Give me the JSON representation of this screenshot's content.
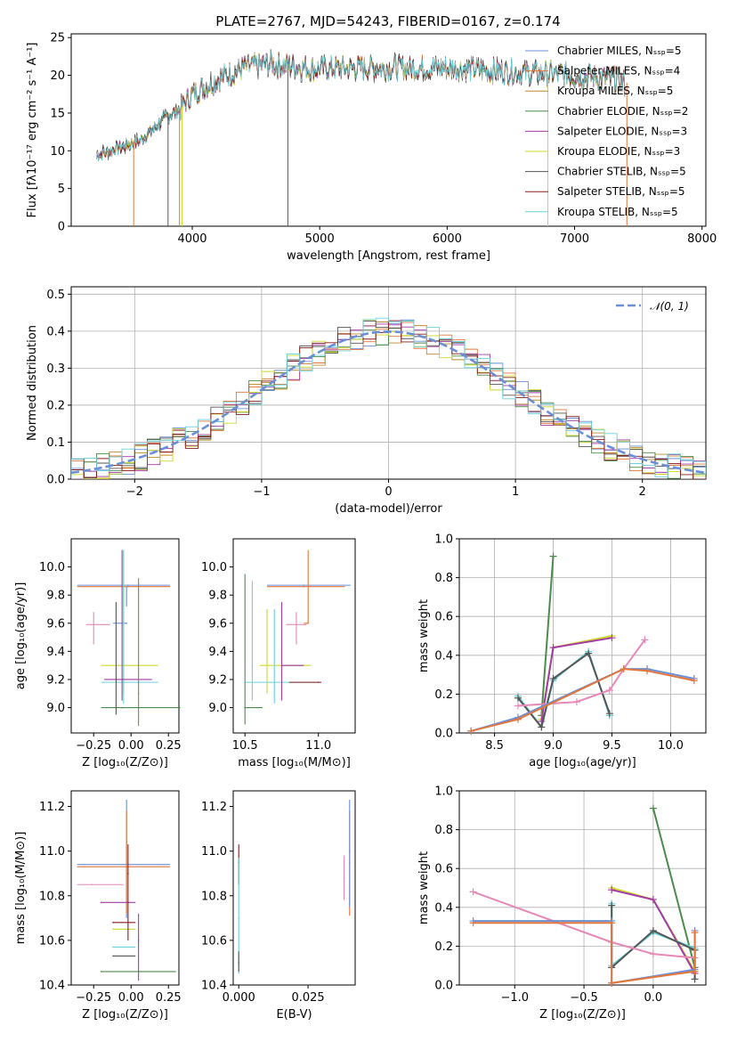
{
  "colors": {
    "CM": "#6a8fd8",
    "SM": "#e4763a",
    "KM": "#c08a2b",
    "CE": "#4d8b4d",
    "SE": "#a33aa8",
    "KE": "#cfd92a",
    "CS": "#555555",
    "SS": "#8a1c1c",
    "KS": "#6ad2dc",
    "pink": "#e688b8",
    "olive": "#7a8a55",
    "normal": "#6a8fd8"
  },
  "chart_data": [
    {
      "type": "line",
      "title": "PLATE=2767, MJD=54243, FIBERID=0167, z=0.174",
      "xlabel": "wavelength [Angstrom, rest frame]",
      "ylabel": "Flux [fλ10⁻¹⁷ erg cm⁻² s⁻¹ A⁻¹]",
      "xlim": [
        3050,
        8030
      ],
      "ylim": [
        0,
        25.5
      ],
      "xticks": [
        "4000",
        "5000",
        "6000",
        "7000",
        "8000"
      ],
      "yticks": [
        "0",
        "5",
        "10",
        "15",
        "20",
        "25"
      ],
      "legend_position": "upper-right",
      "series": [
        {
          "name": "Chabrier MILES, Nₛₛₚ=5",
          "color_key": "CM"
        },
        {
          "name": "Salpeter MILES, Nₛₛₚ=4",
          "color_key": "SM"
        },
        {
          "name": "Kroupa MILES, Nₛₛₚ=5",
          "color_key": "KM"
        },
        {
          "name": "Chabrier ELODIE, Nₛₛₚ=2",
          "color_key": "CE"
        },
        {
          "name": "Salpeter ELODIE, Nₛₛₚ=3",
          "color_key": "SE"
        },
        {
          "name": "Kroupa ELODIE, Nₛₛₚ=3",
          "color_key": "KE"
        },
        {
          "name": "Chabrier STELIB, Nₛₛₚ=5",
          "color_key": "CS"
        },
        {
          "name": "Salpeter STELIB, Nₛₛₚ=5",
          "color_key": "SS"
        },
        {
          "name": "Kroupa STELIB, Nₛₛₚ=5",
          "color_key": "KS"
        }
      ],
      "continuum": {
        "x": [
          3250,
          3400,
          3600,
          3800,
          3900,
          4000,
          4100,
          4200,
          4400,
          4600,
          4800,
          5000,
          5200,
          5500,
          6000,
          6500,
          7000,
          7300,
          7400
        ],
        "y": [
          9.5,
          10.2,
          11.5,
          14.5,
          15.5,
          17.5,
          18.5,
          19.5,
          21,
          21.5,
          21.2,
          20.8,
          21,
          21,
          21,
          20.5,
          20,
          19.5,
          19
        ]
      }
    },
    {
      "type": "histogram",
      "xlabel": "(data-model)/error",
      "ylabel": "Normed distribution",
      "xlim": [
        -2.5,
        2.5
      ],
      "ylim": [
        0,
        0.52
      ],
      "xticks": [
        "−2",
        "−1",
        "0",
        "1",
        "2"
      ],
      "yticks": [
        "0.0",
        "0.1",
        "0.2",
        "0.3",
        "0.4",
        "0.5"
      ],
      "legend_position": "upper-right",
      "legend": "𝒩(0, 1)",
      "bin_width": 0.1,
      "grid": true
    },
    {
      "type": "errorbar",
      "xlabel": "Z [log₁₀(Z/Z⊙)]",
      "ylabel": "age  [log₁₀(age/yr)]",
      "xlim": [
        -0.4,
        0.32
      ],
      "ylim": [
        8.82,
        10.2
      ],
      "xticks": [
        "−0.25",
        "0.00",
        "0.25"
      ],
      "yticks": [
        "9.0",
        "9.2",
        "9.4",
        "9.6",
        "9.8",
        "10.0"
      ],
      "points": [
        {
          "x": -0.02,
          "y": 9.87,
          "xlo": -0.36,
          "xhi": 0.26,
          "ylo": 9.87,
          "yhi": 9.87,
          "c": "CM"
        },
        {
          "x": -0.02,
          "y": 9.86,
          "xlo": -0.36,
          "xhi": 0.26,
          "ylo": 9.86,
          "yhi": 9.86,
          "c": "SM"
        },
        {
          "x": -0.03,
          "y": 9.6,
          "xlo": -0.12,
          "xhi": -0.03,
          "ylo": 9.72,
          "yhi": 9.86,
          "c": "CM"
        },
        {
          "x": -0.25,
          "y": 9.59,
          "xlo": -0.3,
          "xhi": -0.14,
          "ylo": 9.45,
          "yhi": 9.68,
          "c": "pink"
        },
        {
          "x": -0.05,
          "y": 9.3,
          "xlo": -0.2,
          "xhi": 0.18,
          "ylo": 9.1,
          "yhi": 10.12,
          "c": "KE"
        },
        {
          "x": -0.05,
          "y": 9.18,
          "xlo": -0.2,
          "xhi": 0.18,
          "ylo": 9.03,
          "yhi": 10.12,
          "c": "KS"
        },
        {
          "x": -0.06,
          "y": 9.2,
          "xlo": -0.18,
          "xhi": 0.14,
          "ylo": 9.05,
          "yhi": 10.12,
          "c": "SE"
        },
        {
          "x": 0.05,
          "y": 9.1,
          "xlo": 0.05,
          "xhi": 0.05,
          "ylo": 8.87,
          "yhi": 9.92,
          "c": "olive"
        },
        {
          "x": -0.06,
          "y": 9.0,
          "xlo": -0.2,
          "xhi": 0.33,
          "ylo": 9.0,
          "yhi": 9.0,
          "c": "CE"
        },
        {
          "x": -0.1,
          "y": 9.2,
          "xlo": -0.1,
          "xhi": -0.1,
          "ylo": 8.95,
          "yhi": 9.75,
          "c": "CS"
        }
      ]
    },
    {
      "type": "errorbar",
      "xlabel": "mass [log₁₀(M/M⊙)]",
      "xlim": [
        10.42,
        11.25
      ],
      "ylim": [
        8.82,
        10.2
      ],
      "xticks": [
        "10.5",
        "11.0"
      ],
      "yticks": [
        "9.0",
        "9.2",
        "9.4",
        "9.6",
        "9.8",
        "10.0"
      ],
      "points": [
        {
          "x": 10.9,
          "y": 9.87,
          "xlo": 10.65,
          "xhi": 11.22,
          "ylo": 9.87,
          "yhi": 9.87,
          "c": "CM"
        },
        {
          "x": 10.9,
          "y": 9.86,
          "xlo": 10.65,
          "xhi": 11.18,
          "ylo": 9.86,
          "yhi": 9.86,
          "c": "SM"
        },
        {
          "x": 10.93,
          "y": 9.6,
          "xlo": 10.9,
          "xhi": 10.93,
          "ylo": 9.6,
          "yhi": 10.12,
          "c": "SM"
        },
        {
          "x": 10.85,
          "y": 9.59,
          "xlo": 10.78,
          "xhi": 10.92,
          "ylo": 9.45,
          "yhi": 9.68,
          "c": "pink"
        },
        {
          "x": 10.65,
          "y": 9.3,
          "xlo": 10.6,
          "xhi": 10.95,
          "ylo": 9.1,
          "yhi": 9.7,
          "c": "KE"
        },
        {
          "x": 10.7,
          "y": 9.18,
          "xlo": 10.5,
          "xhi": 11.0,
          "ylo": 9.03,
          "yhi": 9.7,
          "c": "KS"
        },
        {
          "x": 10.75,
          "y": 9.3,
          "xlo": 10.75,
          "xhi": 10.9,
          "ylo": 9.05,
          "yhi": 9.75,
          "c": "SE"
        },
        {
          "x": 10.5,
          "y": 9.0,
          "xlo": 10.5,
          "xhi": 10.62,
          "ylo": 8.88,
          "yhi": 9.95,
          "c": "CE"
        },
        {
          "x": 11.0,
          "y": 9.18,
          "xlo": 10.8,
          "xhi": 11.02,
          "ylo": 9.18,
          "yhi": 9.18,
          "c": "SS"
        },
        {
          "x": 10.55,
          "y": 9.3,
          "xlo": 10.55,
          "xhi": 10.55,
          "ylo": 9.05,
          "yhi": 9.9,
          "c": "KS"
        }
      ]
    },
    {
      "type": "line",
      "xlabel": "age  [log₁₀(age/yr)]",
      "ylabel": "mass weight",
      "xlim": [
        8.2,
        10.3
      ],
      "ylim": [
        0,
        1.0
      ],
      "xticks": [
        "8.5",
        "9.0",
        "9.5",
        "10.0"
      ],
      "yticks": [
        "0.0",
        "0.2",
        "0.4",
        "0.6",
        "0.8",
        "1.0"
      ],
      "grid": true,
      "series": [
        {
          "c": "CE",
          "x": [
            8.9,
            9.0
          ],
          "y": [
            0.09,
            0.91
          ]
        },
        {
          "c": "KE",
          "x": [
            8.9,
            9.0,
            9.5
          ],
          "y": [
            0.07,
            0.44,
            0.5
          ]
        },
        {
          "c": "SE",
          "x": [
            8.9,
            9.0,
            9.5
          ],
          "y": [
            0.06,
            0.44,
            0.49
          ]
        },
        {
          "c": "KS",
          "x": [
            8.7,
            8.9,
            9.0,
            9.3,
            9.48
          ],
          "y": [
            0.19,
            0.03,
            0.27,
            0.42,
            0.09
          ]
        },
        {
          "c": "CS",
          "x": [
            8.7,
            8.9,
            9.0,
            9.3,
            9.48
          ],
          "y": [
            0.18,
            0.03,
            0.28,
            0.41,
            0.1
          ]
        },
        {
          "c": "pink",
          "x": [
            8.7,
            9.2,
            9.48,
            9.6,
            9.78
          ],
          "y": [
            0.14,
            0.16,
            0.22,
            0.33,
            0.48
          ]
        },
        {
          "c": "CM",
          "x": [
            8.3,
            8.7,
            9.6,
            9.8,
            10.2
          ],
          "y": [
            0.01,
            0.08,
            0.33,
            0.33,
            0.28
          ]
        },
        {
          "c": "SM",
          "x": [
            8.3,
            8.7,
            9.6,
            9.8,
            10.2
          ],
          "y": [
            0.01,
            0.07,
            0.33,
            0.32,
            0.27
          ]
        }
      ]
    },
    {
      "type": "errorbar",
      "xlabel": "Z [log₁₀(Z/Z⊙)]",
      "ylabel": "mass [log₁₀(M/M⊙)]",
      "xlim": [
        -0.4,
        0.32
      ],
      "ylim": [
        10.4,
        11.27
      ],
      "xticks": [
        "−0.25",
        "0.00",
        "0.25"
      ],
      "yticks": [
        "10.4",
        "10.6",
        "10.8",
        "11.0",
        "11.2"
      ],
      "points": [
        {
          "x": -0.03,
          "y": 10.94,
          "xlo": -0.36,
          "xhi": 0.26,
          "ylo": 10.7,
          "yhi": 11.23,
          "c": "CM"
        },
        {
          "x": -0.03,
          "y": 10.93,
          "xlo": -0.36,
          "xhi": 0.26,
          "ylo": 10.72,
          "yhi": 11.18,
          "c": "SM"
        },
        {
          "x": -0.26,
          "y": 10.85,
          "xlo": -0.36,
          "xhi": -0.05,
          "ylo": 10.85,
          "yhi": 10.85,
          "c": "pink"
        },
        {
          "x": -0.2,
          "y": 10.77,
          "xlo": -0.2,
          "xhi": 0.03,
          "ylo": 10.77,
          "yhi": 10.77,
          "c": "SE"
        },
        {
          "x": -0.12,
          "y": 10.68,
          "xlo": -0.12,
          "xhi": 0.03,
          "ylo": 10.68,
          "yhi": 10.68,
          "c": "SS"
        },
        {
          "x": -0.12,
          "y": 10.65,
          "xlo": -0.12,
          "xhi": 0.03,
          "ylo": 10.65,
          "yhi": 10.65,
          "c": "KE"
        },
        {
          "x": -0.12,
          "y": 10.57,
          "xlo": -0.12,
          "xhi": 0.03,
          "ylo": 10.57,
          "yhi": 10.57,
          "c": "KS"
        },
        {
          "x": -0.12,
          "y": 10.53,
          "xlo": -0.12,
          "xhi": 0.03,
          "ylo": 10.53,
          "yhi": 10.53,
          "c": "CS"
        },
        {
          "x": -0.2,
          "y": 10.46,
          "xlo": -0.2,
          "xhi": 0.3,
          "ylo": 10.46,
          "yhi": 10.46,
          "c": "CE"
        },
        {
          "x": 0.05,
          "y": 10.6,
          "xlo": 0.05,
          "xhi": 0.05,
          "ylo": 10.42,
          "yhi": 10.72,
          "c": "SE"
        },
        {
          "x": -0.02,
          "y": 10.9,
          "xlo": -0.02,
          "xhi": -0.02,
          "ylo": 10.6,
          "yhi": 11.03,
          "c": "SS"
        }
      ]
    },
    {
      "type": "errorbar",
      "xlabel": "E(B-V)",
      "xlim": [
        -0.002,
        0.042
      ],
      "ylim": [
        10.4,
        11.27
      ],
      "xticks": [
        "0.000",
        "0.025"
      ],
      "yticks": [
        "10.4",
        "10.6",
        "10.8",
        "11.0",
        "11.2"
      ],
      "points": [
        {
          "x": 0.0,
          "y": 10.95,
          "xlo": 0.0,
          "xhi": 0.0,
          "ylo": 10.85,
          "yhi": 11.03,
          "c": "SS"
        },
        {
          "x": 0.0,
          "y": 10.7,
          "xlo": 0.0,
          "xhi": 0.0,
          "ylo": 10.45,
          "yhi": 10.97,
          "c": "KS"
        },
        {
          "x": 0.0,
          "y": 10.5,
          "xlo": 0.0,
          "xhi": 0.0,
          "ylo": 10.46,
          "yhi": 10.55,
          "c": "CS"
        },
        {
          "x": 0.038,
          "y": 10.88,
          "xlo": 0.038,
          "xhi": 0.038,
          "ylo": 10.78,
          "yhi": 10.98,
          "c": "pink"
        },
        {
          "x": 0.04,
          "y": 10.95,
          "xlo": 0.04,
          "xhi": 0.04,
          "ylo": 10.71,
          "yhi": 11.18,
          "c": "SM"
        },
        {
          "x": 0.04,
          "y": 11.0,
          "xlo": 0.04,
          "xhi": 0.04,
          "ylo": 10.75,
          "yhi": 11.23,
          "c": "CM"
        }
      ]
    },
    {
      "type": "line",
      "xlabel": "Z [log₁₀(Z/Z⊙)]",
      "ylabel": "mass weight",
      "xlim": [
        -1.4,
        0.38
      ],
      "ylim": [
        0,
        1.0
      ],
      "xticks": [
        "−1.0",
        "−0.5",
        "0.0"
      ],
      "yticks": [
        "0.0",
        "0.2",
        "0.4",
        "0.6",
        "0.8",
        "1.0"
      ],
      "grid": true,
      "series": [
        {
          "c": "CE",
          "x": [
            0.0,
            0.3
          ],
          "y": [
            0.91,
            0.09
          ]
        },
        {
          "c": "KE",
          "x": [
            -0.3,
            0.0,
            0.3
          ],
          "y": [
            0.5,
            0.44,
            0.07
          ]
        },
        {
          "c": "SE",
          "x": [
            -0.3,
            0.0,
            0.3
          ],
          "y": [
            0.49,
            0.44,
            0.06
          ]
        },
        {
          "c": "KS",
          "x": [
            -0.3,
            -0.3,
            0.0,
            0.3,
            0.3
          ],
          "y": [
            0.42,
            0.1,
            0.27,
            0.19,
            0.03
          ]
        },
        {
          "c": "CS",
          "x": [
            -0.3,
            -0.3,
            0.0,
            0.3,
            0.3
          ],
          "y": [
            0.41,
            0.09,
            0.28,
            0.18,
            0.03
          ]
        },
        {
          "c": "pink",
          "x": [
            -1.3,
            -0.3,
            0.0,
            0.3
          ],
          "y": [
            0.48,
            0.22,
            0.16,
            0.14
          ]
        },
        {
          "c": "CM",
          "x": [
            -1.3,
            -0.3,
            -0.3,
            0.3,
            0.3
          ],
          "y": [
            0.33,
            0.33,
            0.01,
            0.08,
            0.28
          ]
        },
        {
          "c": "SM",
          "x": [
            -1.3,
            -0.3,
            -0.3,
            0.3,
            0.3
          ],
          "y": [
            0.32,
            0.32,
            0.01,
            0.07,
            0.27
          ]
        }
      ]
    }
  ]
}
